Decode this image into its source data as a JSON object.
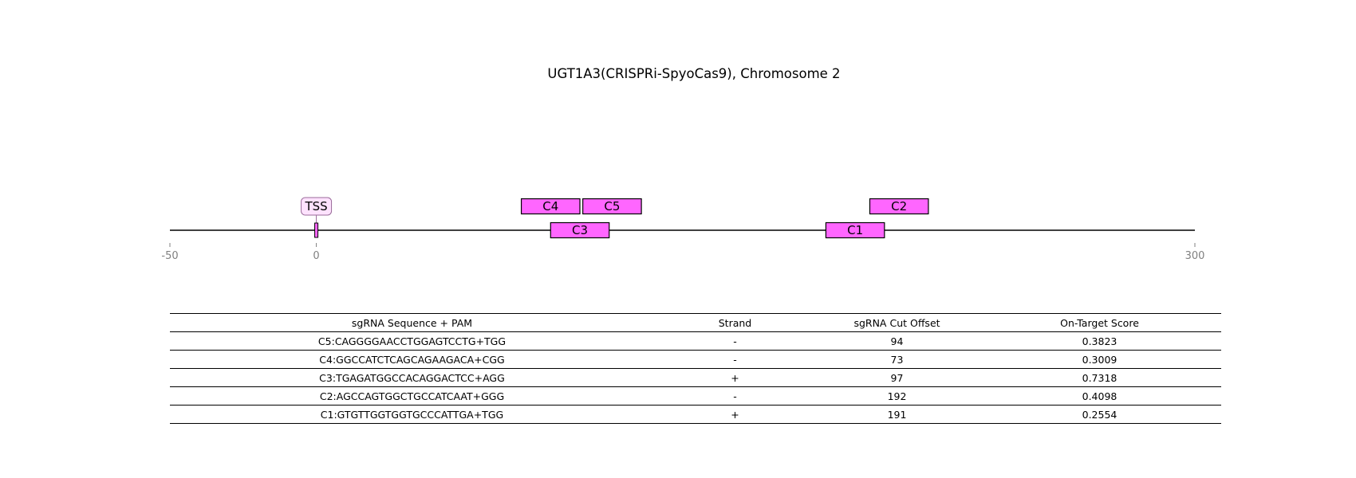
{
  "title": "UGT1A3(CRISPRi-SpyoCas9), Chromosome 2",
  "colors": {
    "guide_fill": "#ff66ff",
    "outline": "#000000",
    "tss_label_fill": "#fde2fd",
    "tss_label_border": "#9a6a9a",
    "axis_tick_text": "#808080"
  },
  "chart_data": {
    "type": "genomic_track",
    "xlim": [
      -50,
      300
    ],
    "ticks": [
      {
        "value": -50,
        "label": "-50"
      },
      {
        "value": 0,
        "label": "0"
      },
      {
        "value": 300,
        "label": "300"
      }
    ],
    "tss": {
      "label": "TSS",
      "position": 0
    },
    "guides": [
      {
        "id": "C5",
        "label": "C5",
        "start": 91,
        "end": 111,
        "row": 2
      },
      {
        "id": "C4",
        "label": "C4",
        "start": 70,
        "end": 90,
        "row": 2
      },
      {
        "id": "C3",
        "label": "C3",
        "start": 80,
        "end": 100,
        "row": 1
      },
      {
        "id": "C2",
        "label": "C2",
        "start": 189,
        "end": 209,
        "row": 2
      },
      {
        "id": "C1",
        "label": "C1",
        "start": 174,
        "end": 194,
        "row": 1
      }
    ]
  },
  "table": {
    "headers": [
      "sgRNA Sequence + PAM",
      "Strand",
      "sgRNA Cut Offset",
      "On-Target Score"
    ],
    "rows": [
      [
        "C5:CAGGGGAACCTGGAGTCCTG+TGG",
        "-",
        "94",
        "0.3823"
      ],
      [
        "C4:GGCCATCTCAGCAGAAGACA+CGG",
        "-",
        "73",
        "0.3009"
      ],
      [
        "C3:TGAGATGGCCACAGGACTCC+AGG",
        "+",
        "97",
        "0.7318"
      ],
      [
        "C2:AGCCAGTGGCTGCCATCAAT+GGG",
        "-",
        "192",
        "0.4098"
      ],
      [
        "C1:GTGTTGGTGGTGCCCATTGA+TGG",
        "+",
        "191",
        "0.2554"
      ]
    ]
  }
}
